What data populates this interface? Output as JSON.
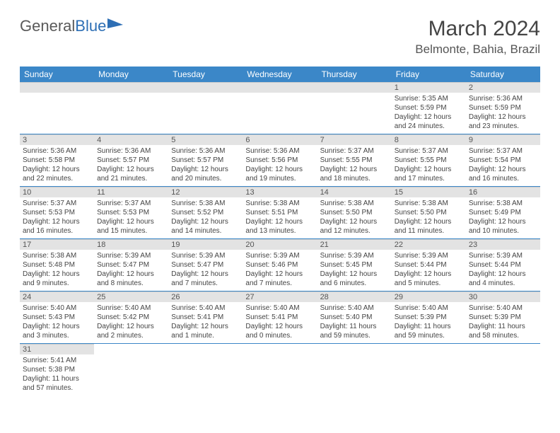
{
  "brand": {
    "part1": "General",
    "part2": "Blue"
  },
  "title": "March 2024",
  "location": "Belmonte, Bahia, Brazil",
  "colors": {
    "header_bg": "#3b87c8",
    "header_text": "#ffffff",
    "daynum_bg": "#e3e3e3",
    "border": "#3b87c8",
    "text": "#444444"
  },
  "dayHeaders": [
    "Sunday",
    "Monday",
    "Tuesday",
    "Wednesday",
    "Thursday",
    "Friday",
    "Saturday"
  ],
  "weeks": [
    [
      null,
      null,
      null,
      null,
      null,
      {
        "n": "1",
        "sr": "5:35 AM",
        "ss": "5:59 PM",
        "dl": "12 hours and 24 minutes."
      },
      {
        "n": "2",
        "sr": "5:36 AM",
        "ss": "5:59 PM",
        "dl": "12 hours and 23 minutes."
      }
    ],
    [
      {
        "n": "3",
        "sr": "5:36 AM",
        "ss": "5:58 PM",
        "dl": "12 hours and 22 minutes."
      },
      {
        "n": "4",
        "sr": "5:36 AM",
        "ss": "5:57 PM",
        "dl": "12 hours and 21 minutes."
      },
      {
        "n": "5",
        "sr": "5:36 AM",
        "ss": "5:57 PM",
        "dl": "12 hours and 20 minutes."
      },
      {
        "n": "6",
        "sr": "5:36 AM",
        "ss": "5:56 PM",
        "dl": "12 hours and 19 minutes."
      },
      {
        "n": "7",
        "sr": "5:37 AM",
        "ss": "5:55 PM",
        "dl": "12 hours and 18 minutes."
      },
      {
        "n": "8",
        "sr": "5:37 AM",
        "ss": "5:55 PM",
        "dl": "12 hours and 17 minutes."
      },
      {
        "n": "9",
        "sr": "5:37 AM",
        "ss": "5:54 PM",
        "dl": "12 hours and 16 minutes."
      }
    ],
    [
      {
        "n": "10",
        "sr": "5:37 AM",
        "ss": "5:53 PM",
        "dl": "12 hours and 16 minutes."
      },
      {
        "n": "11",
        "sr": "5:37 AM",
        "ss": "5:53 PM",
        "dl": "12 hours and 15 minutes."
      },
      {
        "n": "12",
        "sr": "5:38 AM",
        "ss": "5:52 PM",
        "dl": "12 hours and 14 minutes."
      },
      {
        "n": "13",
        "sr": "5:38 AM",
        "ss": "5:51 PM",
        "dl": "12 hours and 13 minutes."
      },
      {
        "n": "14",
        "sr": "5:38 AM",
        "ss": "5:50 PM",
        "dl": "12 hours and 12 minutes."
      },
      {
        "n": "15",
        "sr": "5:38 AM",
        "ss": "5:50 PM",
        "dl": "12 hours and 11 minutes."
      },
      {
        "n": "16",
        "sr": "5:38 AM",
        "ss": "5:49 PM",
        "dl": "12 hours and 10 minutes."
      }
    ],
    [
      {
        "n": "17",
        "sr": "5:38 AM",
        "ss": "5:48 PM",
        "dl": "12 hours and 9 minutes."
      },
      {
        "n": "18",
        "sr": "5:39 AM",
        "ss": "5:47 PM",
        "dl": "12 hours and 8 minutes."
      },
      {
        "n": "19",
        "sr": "5:39 AM",
        "ss": "5:47 PM",
        "dl": "12 hours and 7 minutes."
      },
      {
        "n": "20",
        "sr": "5:39 AM",
        "ss": "5:46 PM",
        "dl": "12 hours and 7 minutes."
      },
      {
        "n": "21",
        "sr": "5:39 AM",
        "ss": "5:45 PM",
        "dl": "12 hours and 6 minutes."
      },
      {
        "n": "22",
        "sr": "5:39 AM",
        "ss": "5:44 PM",
        "dl": "12 hours and 5 minutes."
      },
      {
        "n": "23",
        "sr": "5:39 AM",
        "ss": "5:44 PM",
        "dl": "12 hours and 4 minutes."
      }
    ],
    [
      {
        "n": "24",
        "sr": "5:40 AM",
        "ss": "5:43 PM",
        "dl": "12 hours and 3 minutes."
      },
      {
        "n": "25",
        "sr": "5:40 AM",
        "ss": "5:42 PM",
        "dl": "12 hours and 2 minutes."
      },
      {
        "n": "26",
        "sr": "5:40 AM",
        "ss": "5:41 PM",
        "dl": "12 hours and 1 minute."
      },
      {
        "n": "27",
        "sr": "5:40 AM",
        "ss": "5:41 PM",
        "dl": "12 hours and 0 minutes."
      },
      {
        "n": "28",
        "sr": "5:40 AM",
        "ss": "5:40 PM",
        "dl": "11 hours and 59 minutes."
      },
      {
        "n": "29",
        "sr": "5:40 AM",
        "ss": "5:39 PM",
        "dl": "11 hours and 59 minutes."
      },
      {
        "n": "30",
        "sr": "5:40 AM",
        "ss": "5:39 PM",
        "dl": "11 hours and 58 minutes."
      }
    ],
    [
      {
        "n": "31",
        "sr": "5:41 AM",
        "ss": "5:38 PM",
        "dl": "11 hours and 57 minutes."
      },
      null,
      null,
      null,
      null,
      null,
      null
    ]
  ],
  "labels": {
    "sunrise": "Sunrise:",
    "sunset": "Sunset:",
    "daylight": "Daylight:"
  }
}
